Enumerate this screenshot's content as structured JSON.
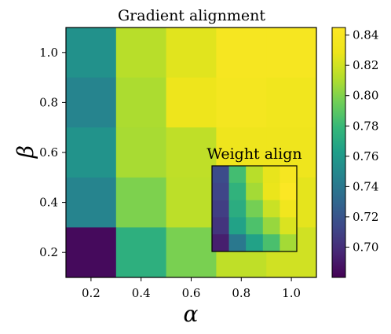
{
  "chart_data": [
    {
      "type": "heatmap",
      "title": "Gradient alignment",
      "xlabel": "α",
      "ylabel": "β",
      "x": [
        0.2,
        0.4,
        0.6,
        0.8,
        1.0
      ],
      "y": [
        1.0,
        0.8,
        0.6,
        0.4,
        0.2
      ],
      "x_ticks": [
        "0.2",
        "0.4",
        "0.6",
        "0.8",
        "1.0"
      ],
      "y_ticks": [
        "1.0",
        "0.8",
        "0.6",
        "0.4",
        "0.2"
      ],
      "values": [
        [
          0.755,
          0.813,
          0.825,
          0.838,
          0.838
        ],
        [
          0.747,
          0.81,
          0.83,
          0.836,
          0.833
        ],
        [
          0.756,
          0.809,
          0.815,
          0.831,
          0.831
        ],
        [
          0.747,
          0.799,
          0.814,
          0.822,
          0.826
        ],
        [
          0.684,
          0.774,
          0.798,
          0.815,
          0.82
        ]
      ],
      "colorbar": {
        "min": 0.68,
        "max": 0.845,
        "ticks": [
          "0.84",
          "0.82",
          "0.80",
          "0.78",
          "0.76",
          "0.74",
          "0.72",
          "0.70"
        ],
        "tick_values": [
          0.84,
          0.82,
          0.8,
          0.78,
          0.76,
          0.74,
          0.72,
          0.7
        ]
      },
      "colormap": "viridis"
    },
    {
      "type": "heatmap",
      "title": "Weight align",
      "values": [
        [
          0.715,
          0.783,
          0.813,
          0.827,
          0.838
        ],
        [
          0.712,
          0.776,
          0.808,
          0.828,
          0.843
        ],
        [
          0.708,
          0.772,
          0.797,
          0.818,
          0.833
        ],
        [
          0.703,
          0.765,
          0.786,
          0.805,
          0.823
        ],
        [
          0.693,
          0.74,
          0.765,
          0.785,
          0.808
        ]
      ]
    }
  ]
}
